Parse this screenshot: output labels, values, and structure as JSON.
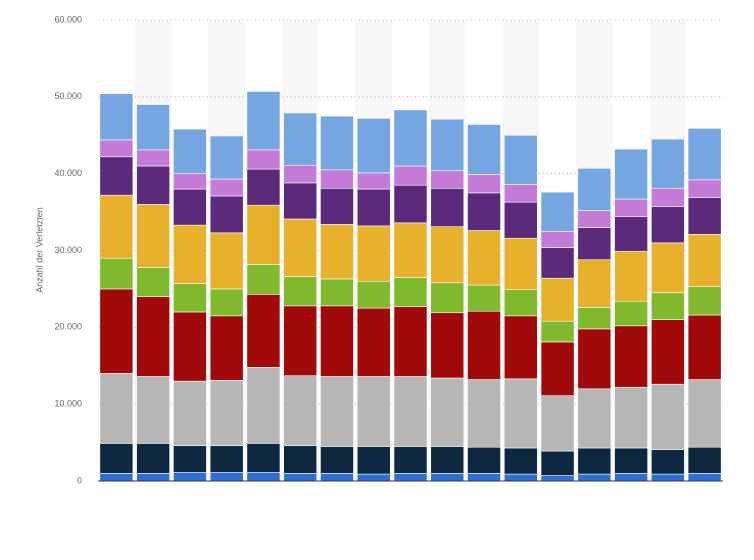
{
  "chart_data": {
    "type": "bar",
    "stacked": true,
    "y_label": "Anzahl der Verletzten",
    "categories": [
      null,
      null,
      null,
      null,
      null,
      null,
      null,
      null,
      null,
      null,
      null,
      null,
      null,
      null,
      null,
      null,
      null
    ],
    "series": [
      {
        "color": "#2e6fd4",
        "values": [
          1000,
          1000,
          1100,
          1100,
          1100,
          1000,
          1000,
          900,
          1000,
          1000,
          1000,
          900,
          700,
          900,
          1000,
          900,
          1000
        ]
      },
      {
        "color": "#0e2841",
        "values": [
          3900,
          3900,
          3500,
          3500,
          3800,
          3600,
          3500,
          3600,
          3500,
          3500,
          3400,
          3400,
          3200,
          3400,
          3300,
          3200,
          3400
        ]
      },
      {
        "color": "#b6b6b6",
        "values": [
          9100,
          8700,
          8400,
          8500,
          9900,
          9100,
          9100,
          9100,
          9100,
          8900,
          8800,
          9000,
          7200,
          7700,
          7900,
          8500,
          8800
        ]
      },
      {
        "color": "#a10a0a",
        "values": [
          11000,
          10400,
          9000,
          8400,
          9500,
          9100,
          9200,
          8900,
          9100,
          8500,
          8900,
          8200,
          7000,
          7800,
          8000,
          8400,
          8400
        ]
      },
      {
        "color": "#80b92d",
        "values": [
          4000,
          3800,
          3700,
          3500,
          3900,
          3800,
          3500,
          3500,
          3800,
          3900,
          3400,
          3400,
          2700,
          2800,
          3200,
          3500,
          3700
        ]
      },
      {
        "color": "#e8b12b",
        "values": [
          8200,
          8200,
          7600,
          7300,
          7700,
          7500,
          7100,
          7200,
          7100,
          7300,
          7100,
          6700,
          5600,
          6200,
          6500,
          6500,
          6800
        ]
      },
      {
        "color": "#5c2a7b",
        "values": [
          5000,
          5000,
          4700,
          4800,
          4700,
          4700,
          4700,
          4800,
          4900,
          5000,
          4900,
          4700,
          4000,
          4200,
          4500,
          4700,
          4800
        ]
      },
      {
        "color": "#c47ad9",
        "values": [
          2200,
          2100,
          2000,
          2200,
          2500,
          2300,
          2400,
          2100,
          2500,
          2300,
          2400,
          2300,
          2100,
          2200,
          2300,
          2400,
          2300
        ]
      },
      {
        "color": "#76a6e1",
        "values": [
          6000,
          5900,
          5800,
          5600,
          7600,
          6800,
          7000,
          7100,
          7300,
          6700,
          6500,
          6400,
          5100,
          5500,
          6500,
          6400,
          6700
        ]
      }
    ],
    "ylim": [
      0,
      60000
    ],
    "yticks": [
      {
        "value": 0,
        "label": "0"
      },
      {
        "value": 10000,
        "label": "10.000"
      },
      {
        "value": 20000,
        "label": "20.000"
      },
      {
        "value": 30000,
        "label": "30.000"
      },
      {
        "value": 40000,
        "label": "40.000"
      },
      {
        "value": 50000,
        "label": "50.000"
      },
      {
        "value": 60000,
        "label": "60.000"
      }
    ],
    "grid": true
  }
}
